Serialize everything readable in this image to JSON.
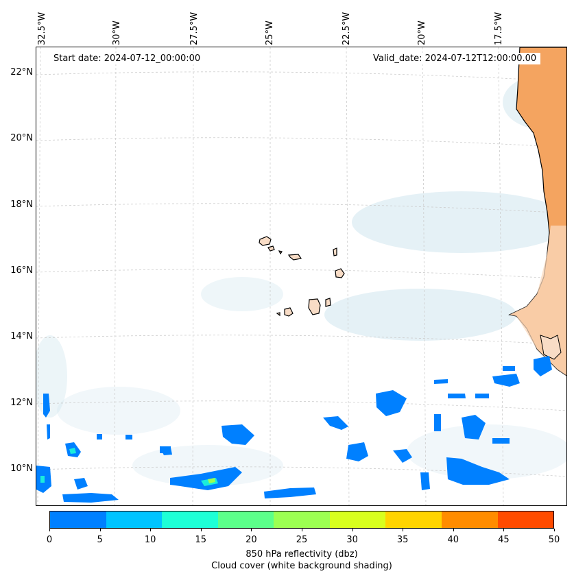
{
  "header": {
    "start_date": "Start date: 2024-07-12_00:00:00",
    "valid_date": "Valid_date: 2024-07-12T12:00:00.00"
  },
  "longitude_labels": [
    "32.5°W",
    "30°W",
    "27.5°W",
    "25°W",
    "22.5°W",
    "20°W",
    "17.5°W"
  ],
  "latitude_labels": [
    "22°N",
    "20°N",
    "18°N",
    "16°N",
    "14°N",
    "12°N",
    "10°N"
  ],
  "colorbar": {
    "ticks": [
      "0",
      "5",
      "10",
      "15",
      "20",
      "25",
      "30",
      "35",
      "40",
      "45",
      "50"
    ],
    "colors": [
      "#0080ff",
      "#00c4ff",
      "#1effd6",
      "#5cff8a",
      "#9cff52",
      "#d8ff1e",
      "#ffd400",
      "#ff8c00",
      "#ff4b00"
    ],
    "title_line1": "850 hPa reflectivity (dbz)",
    "title_line2": "Cloud cover (white background shading)"
  },
  "colors": {
    "land": "#f4a460",
    "island": "#f8dcc6",
    "cloud": "#cfe6ee",
    "reflectivity_low": "#0080ff",
    "grid": "#cccccc"
  }
}
